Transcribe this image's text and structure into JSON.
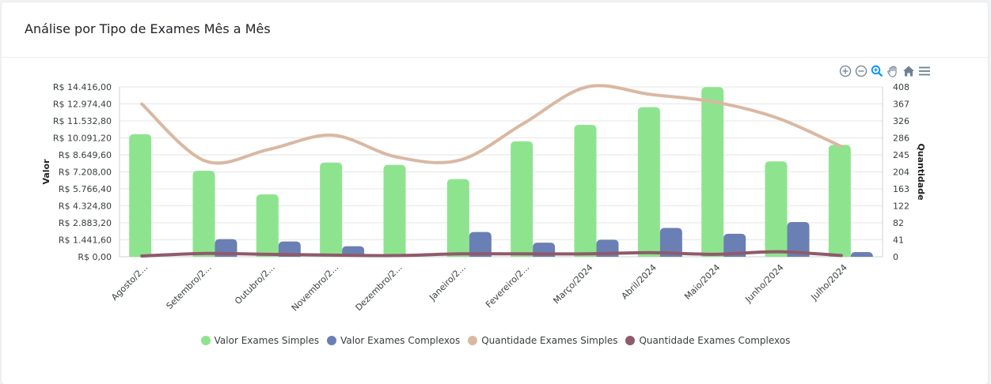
{
  "card": {
    "title": "Análise por Tipo de Exames Mês a Mês"
  },
  "toolbar": {
    "icons": [
      "zoom-in-icon",
      "zoom-out-icon",
      "selection-zoom-icon",
      "pan-icon",
      "reset-home-icon",
      "menu-icon"
    ]
  },
  "colors": {
    "simples_valor": "#8ee48e",
    "complexos_valor": "#6a7fb3",
    "simples_qtd": "#d9b8a2",
    "complexos_qtd": "#8f5a6a",
    "toolbar_active": "#008ffb",
    "toolbar": "#6e8192"
  },
  "chart_data": {
    "type": "bar",
    "categories": [
      "Agosto/2...",
      "Setembro/2...",
      "Outubro/2...",
      "Novembro/2...",
      "Dezembro/2...",
      "Janeiro/2...",
      "Fevereiro/2...",
      "Março/2024",
      "Abril/2024",
      "Maio/2024",
      "Junho/2024",
      "Julho/2024"
    ],
    "ylabel": "Valor",
    "y2label": "Quantidade",
    "ylim": [
      0,
      14416
    ],
    "y2lim": [
      0,
      408
    ],
    "yticks": [
      "R$ 0,00",
      "R$ 1.441,60",
      "R$ 2.883,20",
      "R$ 4.324,80",
      "R$ 5.766,40",
      "R$ 7.208,00",
      "R$ 8.649,60",
      "R$ 10.091,20",
      "R$ 11.532,80",
      "R$ 12.974,40",
      "R$ 14.416,00"
    ],
    "y2ticks": [
      "0",
      "41",
      "82",
      "122",
      "163",
      "204",
      "245",
      "286",
      "326",
      "367",
      "408"
    ],
    "grid": true,
    "legend_position": "bottom",
    "series": [
      {
        "name": "Valor Exames Simples",
        "kind": "bar",
        "axis": "left",
        "values": [
          10400,
          7300,
          5300,
          8000,
          7800,
          6600,
          9800,
          11200,
          12700,
          14400,
          8100,
          9500
        ]
      },
      {
        "name": "Valor Exames Complexos",
        "kind": "bar",
        "axis": "left",
        "values": [
          0,
          1500,
          1300,
          900,
          0,
          2100,
          1200,
          1450,
          2450,
          1950,
          2950,
          400
        ]
      },
      {
        "name": "Quantidade Exames Simples",
        "kind": "line",
        "axis": "right",
        "values": [
          367,
          230,
          258,
          292,
          240,
          232,
          320,
          408,
          390,
          372,
          333,
          265
        ]
      },
      {
        "name": "Quantidade Exames Complexos",
        "kind": "line",
        "axis": "right",
        "values": [
          2,
          8,
          6,
          4,
          3,
          7,
          7,
          7,
          10,
          6,
          12,
          3
        ]
      }
    ]
  }
}
